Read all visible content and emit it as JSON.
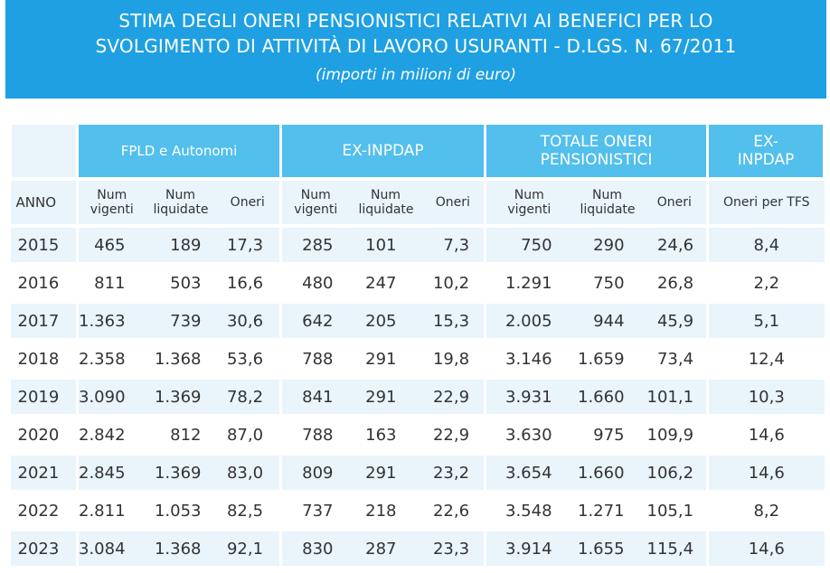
{
  "title": {
    "line1": "STIMA DEGLI ONERI PENSIONISTICI RELATIVI AI BENEFICI PER LO",
    "line2": "SVOLGIMENTO DI ATTIVITÀ DI LAVORO USURANTI - D.LGS. N. 67/2011",
    "subtitle": "(importi in milioni di euro)"
  },
  "groups": {
    "fpld": "FPLD e Autonomi",
    "exinpdap": "EX-INPDAP",
    "totale": "TOTALE ONERI PENSIONISTICI",
    "exinpdap_tfs": "EX-INPDAP"
  },
  "subheaders": {
    "anno": "ANNO",
    "num_vigenti": "Num vigenti",
    "num_liquidate": "Num liquidate",
    "oneri": "Oneri",
    "oneri_tfs": "Oneri per TFS"
  },
  "rows": [
    {
      "year": "2015",
      "v": [
        "465",
        "189",
        "17,3",
        "285",
        "101",
        "7,3",
        "750",
        "290",
        "24,6",
        "8,4"
      ]
    },
    {
      "year": "2016",
      "v": [
        "811",
        "503",
        "16,6",
        "480",
        "247",
        "10,2",
        "1.291",
        "750",
        "26,8",
        "2,2"
      ]
    },
    {
      "year": "2017",
      "v": [
        "1.363",
        "739",
        "30,6",
        "642",
        "205",
        "15,3",
        "2.005",
        "944",
        "45,9",
        "5,1"
      ]
    },
    {
      "year": "2018",
      "v": [
        "2.358",
        "1.368",
        "53,6",
        "788",
        "291",
        "19,8",
        "3.146",
        "1.659",
        "73,4",
        "12,4"
      ]
    },
    {
      "year": "2019",
      "v": [
        "3.090",
        "1.369",
        "78,2",
        "841",
        "291",
        "22,9",
        "3.931",
        "1.660",
        "101,1",
        "10,3"
      ]
    },
    {
      "year": "2020",
      "v": [
        "2.842",
        "812",
        "87,0",
        "788",
        "163",
        "22,9",
        "3.630",
        "975",
        "109,9",
        "14,6"
      ]
    },
    {
      "year": "2021",
      "v": [
        "2.845",
        "1.369",
        "83,0",
        "809",
        "291",
        "23,2",
        "3.654",
        "1.660",
        "106,2",
        "14,6"
      ]
    },
    {
      "year": "2022",
      "v": [
        "2.811",
        "1.053",
        "82,5",
        "737",
        "218",
        "22,6",
        "3.548",
        "1.271",
        "105,1",
        "8,2"
      ]
    },
    {
      "year": "2023",
      "v": [
        "3.084",
        "1.368",
        "92,1",
        "830",
        "287",
        "23,3",
        "3.914",
        "1.655",
        "115,4",
        "14,6"
      ]
    }
  ],
  "colors": {
    "banner": "#1ea0e3",
    "header": "#52bfec",
    "row_tint": "#e9f4fb"
  }
}
